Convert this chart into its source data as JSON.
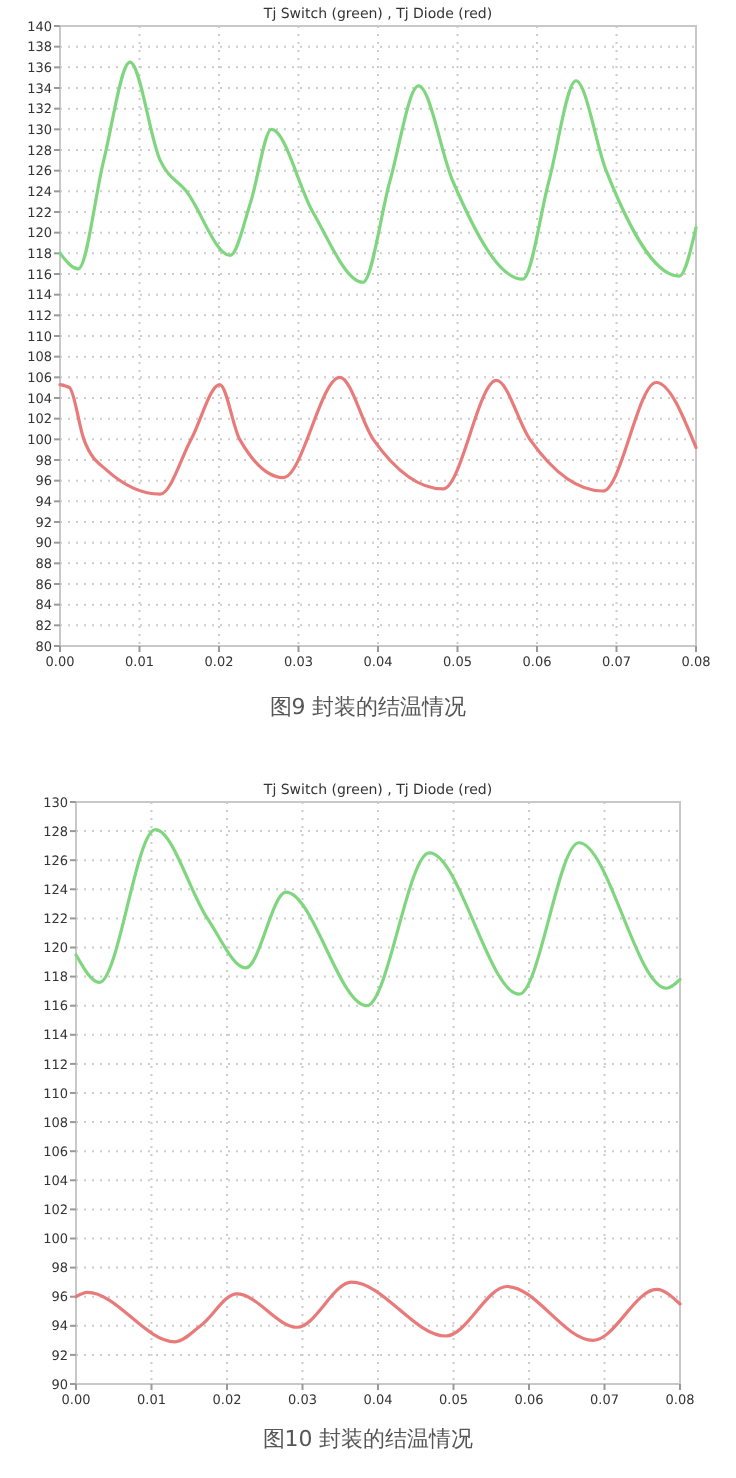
{
  "chart_data": [
    {
      "type": "line",
      "title": "Tj Switch (green) , Tj Diode (red)",
      "annotations": [
        "图9 封装的结温情况"
      ],
      "grid": true,
      "line_style": "solid",
      "marker": "none",
      "xlim": [
        0,
        0.08
      ],
      "ylim": [
        80,
        140
      ],
      "xticks": [
        {
          "value": 0,
          "label": "0.00"
        },
        {
          "value": 0.01,
          "label": "0.01"
        },
        {
          "value": 0.02,
          "label": "0.02"
        },
        {
          "value": 0.03,
          "label": "0.03"
        },
        {
          "value": 0.04,
          "label": "0.04"
        },
        {
          "value": 0.05,
          "label": "0.05"
        },
        {
          "value": 0.06,
          "label": "0.06"
        },
        {
          "value": 0.07,
          "label": "0.07"
        },
        {
          "value": 0.08,
          "label": "0.08"
        }
      ],
      "yticks": [
        80,
        82,
        84,
        86,
        88,
        90,
        92,
        94,
        96,
        98,
        100,
        102,
        104,
        106,
        108,
        110,
        112,
        114,
        116,
        118,
        120,
        122,
        124,
        126,
        128,
        130,
        132,
        134,
        136,
        138,
        140
      ],
      "series": [
        {
          "color": "#7fd67f",
          "x": [
            0,
            0.0023,
            0.0055,
            0.0088,
            0.0126,
            0.0159,
            0.0214,
            0.024,
            0.0266,
            0.0318,
            0.0381,
            0.0415,
            0.0451,
            0.0494,
            0.0582,
            0.0615,
            0.0649,
            0.0687,
            0.0779,
            0.08
          ],
          "values": [
            118,
            116.5,
            127,
            136.5,
            127,
            124,
            117.8,
            123,
            130,
            122,
            115.2,
            125,
            134.2,
            125,
            115.5,
            125,
            134.7,
            126,
            115.8,
            120.5
          ]
        },
        {
          "color": "#e87a7a",
          "x": [
            0,
            0.0012,
            0.003,
            0.0059,
            0.0126,
            0.0165,
            0.0201,
            0.0226,
            0.0281,
            0.0352,
            0.0394,
            0.0482,
            0.0549,
            0.0591,
            0.0683,
            0.075,
            0.08
          ],
          "values": [
            105.3,
            105,
            100,
            97,
            94.7,
            100,
            105.3,
            100,
            96.3,
            106,
            100,
            95.2,
            105.7,
            100,
            95,
            105.5,
            99.2
          ]
        }
      ]
    },
    {
      "type": "line",
      "title": "Tj Switch (green) , Tj Diode (red)",
      "annotations": [
        "图10 封装的结温情况"
      ],
      "grid": true,
      "line_style": "solid",
      "marker": "none",
      "xlim": [
        0,
        0.08
      ],
      "ylim": [
        90,
        130
      ],
      "xticks": [
        {
          "value": 0,
          "label": "0.00"
        },
        {
          "value": 0.01,
          "label": "0.01"
        },
        {
          "value": 0.02,
          "label": "0.02"
        },
        {
          "value": 0.03,
          "label": "0.03"
        },
        {
          "value": 0.04,
          "label": "0.04"
        },
        {
          "value": 0.05,
          "label": "0.05"
        },
        {
          "value": 0.06,
          "label": "0.06"
        },
        {
          "value": 0.07,
          "label": "0.07"
        },
        {
          "value": 0.08,
          "label": "0.08"
        }
      ],
      "yticks": [
        90,
        92,
        94,
        96,
        98,
        100,
        102,
        104,
        106,
        108,
        110,
        112,
        114,
        116,
        118,
        120,
        122,
        124,
        126,
        128,
        130
      ],
      "series": [
        {
          "color": "#7fd67f",
          "x": [
            0,
            0.0031,
            0.0105,
            0.0174,
            0.0225,
            0.0278,
            0.0385,
            0.0468,
            0.0587,
            0.0666,
            0.0782,
            0.08
          ],
          "values": [
            119.5,
            117.6,
            128.1,
            122,
            118.6,
            123.8,
            116,
            126.5,
            116.8,
            127.2,
            117.2,
            117.8
          ]
        },
        {
          "color": "#e87a7a",
          "x": [
            0,
            0.0015,
            0.0131,
            0.0165,
            0.0213,
            0.0293,
            0.0365,
            0.049,
            0.0571,
            0.0685,
            0.0769,
            0.08
          ],
          "values": [
            96,
            96.3,
            92.9,
            94,
            96.2,
            93.9,
            97,
            93.3,
            96.7,
            93,
            96.5,
            95.5
          ]
        }
      ]
    }
  ]
}
